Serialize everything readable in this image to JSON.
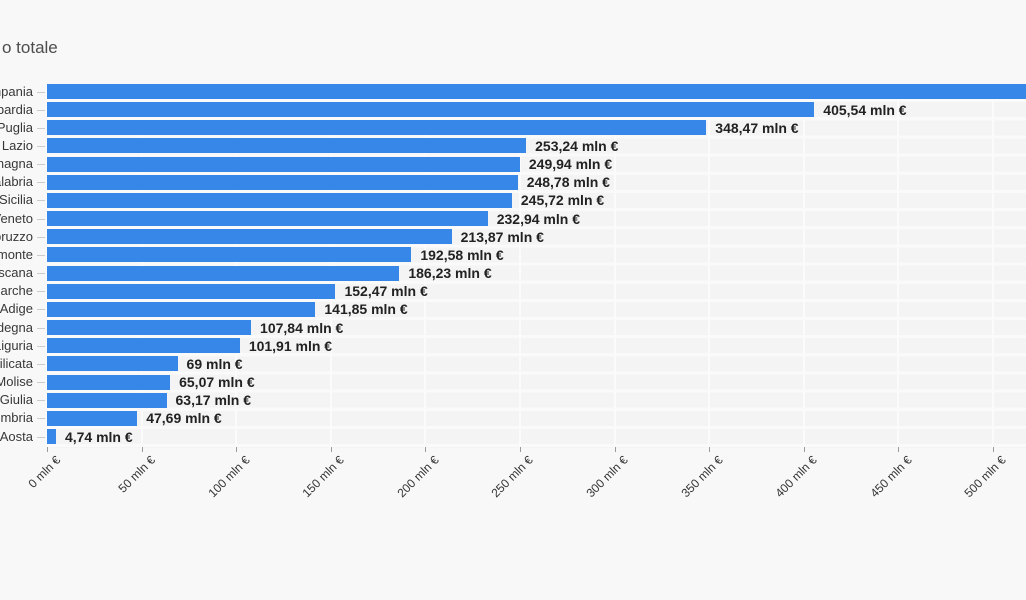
{
  "title": {
    "visible_text": "o totale"
  },
  "colors": {
    "page_background": "#f8f8f8",
    "bar": "#3787e8",
    "value_label_text": "#222222",
    "category_label_text": "#383838",
    "axis_label_text": "#333333",
    "gridline": "#fbfbfb",
    "plot_stripe": "#f4f4f4"
  },
  "chart_data": {
    "type": "bar",
    "orientation": "horizontal",
    "value_unit": "mln €",
    "title_visible": "o totale",
    "grid": true,
    "x_axis": {
      "range_mln": [
        0,
        500
      ],
      "tick_step_mln": 50,
      "tick_values": [
        0,
        50,
        100,
        150,
        200,
        250,
        300,
        350,
        400,
        450,
        500
      ],
      "tick_labels": [
        "0 mln €",
        "50 mln €",
        "100 mln €",
        "150 mln €",
        "200 mln €",
        "250 mln €",
        "300 mln €",
        "350 mln €",
        "400 mln €",
        "450 mln €",
        "500 mln €"
      ]
    },
    "rows": [
      {
        "region": "Campania",
        "label_visible": "npania",
        "value_mln": null,
        "value_label": "",
        "bar_clipped_at_right": true
      },
      {
        "region": "Lombardia",
        "label_visible": "bardia",
        "value_mln": 405.54,
        "value_label": "405,54 mln €"
      },
      {
        "region": "Puglia",
        "label_visible": "Puglia",
        "value_mln": 348.47,
        "value_label": "348,47 mln €"
      },
      {
        "region": "Lazio",
        "label_visible": "Lazio",
        "value_mln": 253.24,
        "value_label": "253,24 mln €"
      },
      {
        "region": "Emilia-Romagna",
        "label_visible": "nagna",
        "value_mln": 249.94,
        "value_label": "249,94 mln €"
      },
      {
        "region": "Calabria",
        "label_visible": "alabria",
        "value_mln": 248.78,
        "value_label": "248,78 mln €"
      },
      {
        "region": "Sicilia",
        "label_visible": "Sicilia",
        "value_mln": 245.72,
        "value_label": "245,72 mln €"
      },
      {
        "region": "Veneto",
        "label_visible": "eneto",
        "value_mln": 232.94,
        "value_label": "232,94 mln €"
      },
      {
        "region": "Abruzzo",
        "label_visible": "bruzzo",
        "value_mln": 213.87,
        "value_label": "213,87 mln €"
      },
      {
        "region": "Piemonte",
        "label_visible": "monte",
        "value_mln": 192.58,
        "value_label": "192,58 mln €"
      },
      {
        "region": "Toscana",
        "label_visible": "scana",
        "value_mln": 186.23,
        "value_label": "186,23 mln €"
      },
      {
        "region": "Marche",
        "label_visible": "arche",
        "value_mln": 152.47,
        "value_label": "152,47 mln €"
      },
      {
        "region": "Trentino-Alto Adige",
        "label_visible": "Adige",
        "value_mln": 141.85,
        "value_label": "141,85 mln €"
      },
      {
        "region": "Sardegna",
        "label_visible": "degna",
        "value_mln": 107.84,
        "value_label": "107,84 mln €"
      },
      {
        "region": "Liguria",
        "label_visible": "Liguria",
        "value_mln": 101.91,
        "value_label": "101,91 mln €"
      },
      {
        "region": "Basilicata",
        "label_visible": "silicata",
        "value_mln": 69,
        "value_label": "69 mln €"
      },
      {
        "region": "Molise",
        "label_visible": "Molise",
        "value_mln": 65.07,
        "value_label": "65,07 mln €"
      },
      {
        "region": "Friuli-Venezia Giulia",
        "label_visible": "Giulia",
        "value_mln": 63.17,
        "value_label": "63,17 mln €"
      },
      {
        "region": "Umbria",
        "label_visible": "mbria",
        "value_mln": 47.69,
        "value_label": "47,69 mln €"
      },
      {
        "region": "Valle d'Aosta",
        "label_visible": "'Aosta",
        "value_mln": 4.74,
        "value_label": "4,74 mln €"
      }
    ]
  }
}
